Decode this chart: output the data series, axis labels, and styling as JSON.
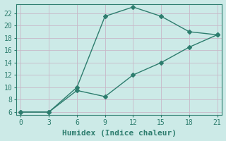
{
  "line1_x": [
    0,
    3,
    6,
    9,
    12,
    15,
    18,
    21
  ],
  "line1_y": [
    6,
    6,
    10,
    21.5,
    23,
    21.5,
    19,
    18.5
  ],
  "line2_x": [
    0,
    3,
    6,
    9,
    12,
    15,
    18,
    21
  ],
  "line2_y": [
    6,
    6,
    9.5,
    8.5,
    12,
    14,
    16.5,
    18.5
  ],
  "line_color": "#2d7d6e",
  "bg_color": "#cceae7",
  "grid_color": "#c8b8c8",
  "xlabel": "Humidex (Indice chaleur)",
  "xlim": [
    -0.5,
    21.5
  ],
  "ylim": [
    5.5,
    23.5
  ],
  "xticks": [
    0,
    3,
    6,
    9,
    12,
    15,
    18,
    21
  ],
  "yticks": [
    6,
    8,
    10,
    12,
    14,
    16,
    18,
    20,
    22
  ],
  "marker": "D",
  "markersize": 3,
  "linewidth": 1.0,
  "tick_fontsize": 7,
  "xlabel_fontsize": 8
}
